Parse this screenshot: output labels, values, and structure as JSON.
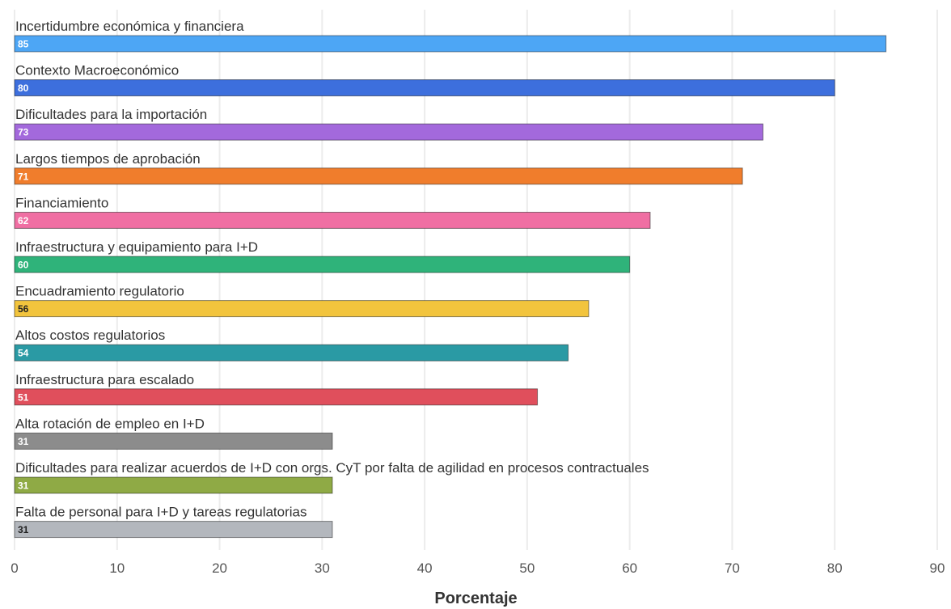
{
  "chart_data": {
    "type": "bar",
    "orientation": "horizontal",
    "categories": [
      "Incertidumbre económica y financiera",
      "Contexto Macroeconómico",
      "Dificultades para la importación",
      "Largos tiempos de aprobación",
      "Financiamiento",
      "Infraestructura y equipamiento para I+D",
      "Encuadramiento regulatorio",
      "Altos costos regulatorios",
      "Infraestructura para escalado",
      "Alta rotación de empleo en I+D",
      "Dificultades para realizar acuerdos de I+D con orgs. CyT por falta de agilidad en procesos contractuales",
      "Falta de personal para I+D y tareas regulatorias"
    ],
    "values": [
      85,
      80,
      73,
      71,
      62,
      60,
      56,
      54,
      51,
      31,
      31,
      31
    ],
    "data_labels": [
      "85",
      "80",
      "73",
      "71",
      "62",
      "60",
      "56",
      "54",
      "51",
      "31",
      "31",
      "31"
    ],
    "colors": [
      "#4da6f5",
      "#3d6fdd",
      "#a369dc",
      "#f07d2c",
      "#f06fa3",
      "#2fb37a",
      "#f2c43d",
      "#2a9aa4",
      "#e04f5c",
      "#8c8c8c",
      "#8faa45",
      "#b3b7bd"
    ],
    "label_colors": [
      "#ffffff",
      "#ffffff",
      "#ffffff",
      "#ffffff",
      "#ffffff",
      "#ffffff",
      "#222222",
      "#ffffff",
      "#ffffff",
      "#ffffff",
      "#ffffff",
      "#222222"
    ],
    "xlabel": "Porcentaje",
    "ylabel": "",
    "xlim": [
      0,
      90
    ],
    "xticks": [
      0,
      10,
      20,
      30,
      40,
      50,
      60,
      70,
      80,
      90
    ],
    "grid": "vertical"
  }
}
